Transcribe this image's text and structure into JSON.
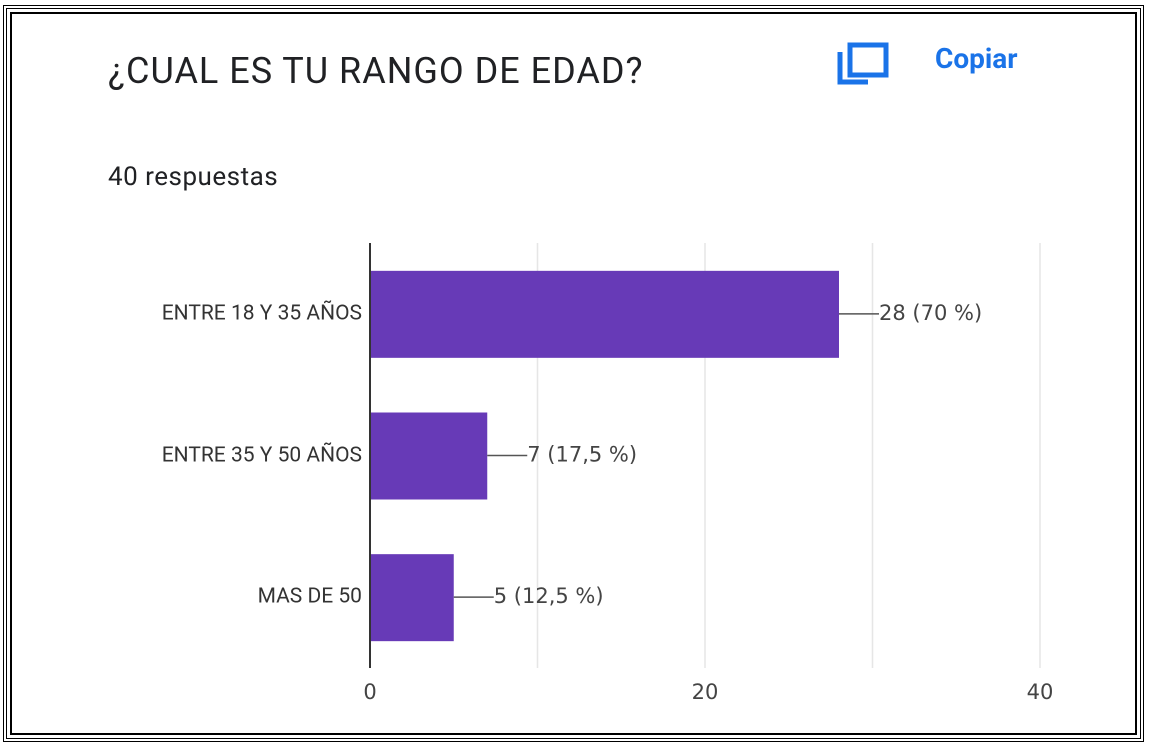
{
  "chart_data": {
    "type": "bar",
    "orientation": "horizontal",
    "title": "¿CUAL ES TU RANGO DE EDAD?",
    "subtitle": "40 respuestas",
    "action": "Copiar",
    "categories": [
      "ENTRE 18 Y 35 AÑOS",
      "ENTRE 35 Y 50 AÑOS",
      "MAS DE 50"
    ],
    "values": [
      28,
      7,
      5
    ],
    "value_labels": [
      "28 (70 %)",
      "7 (17,5 %)",
      "5 (12,5 %)"
    ],
    "color": "#673ab7",
    "xlim": [
      0,
      40
    ],
    "xticks": [
      0,
      20,
      40
    ],
    "minor_xticks": [
      10,
      30
    ],
    "grid": true
  }
}
